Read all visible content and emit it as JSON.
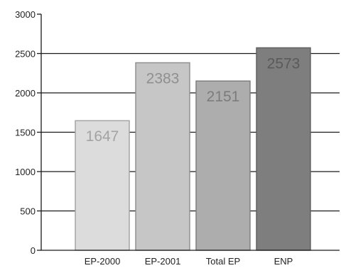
{
  "chart_data": {
    "type": "bar",
    "title": "",
    "xlabel": "",
    "ylabel": "",
    "categories": [
      "EP-2000",
      "EP-2001",
      "Total EP",
      "ENP"
    ],
    "values": [
      1647,
      2383,
      2151,
      2573
    ],
    "data_labels": [
      "1647",
      "2383",
      "2151",
      "2573"
    ],
    "ylim": [
      0,
      3000
    ],
    "yticks": [
      0,
      500,
      1000,
      1500,
      2000,
      2500,
      3000
    ],
    "ytick_labels": [
      "0",
      "500",
      "1000",
      "1500",
      "2000",
      "2500",
      "3000"
    ],
    "grid": "horizontal",
    "legend": "none",
    "colors": {
      "bars": [
        "#dcdcdc",
        "#c6c6c6",
        "#adadad",
        "#7e7e7e"
      ],
      "bar_edges": [
        "#a0a0a0",
        "#8c8c8c",
        "#7a7a7a",
        "#5e5e5e"
      ],
      "data_labels": [
        "#a3a3a3",
        "#8f8f8f",
        "#7c7c7c",
        "#5a5a5a"
      ],
      "gridline": "#1a1a1a",
      "axis": "#1a1a1a"
    }
  }
}
